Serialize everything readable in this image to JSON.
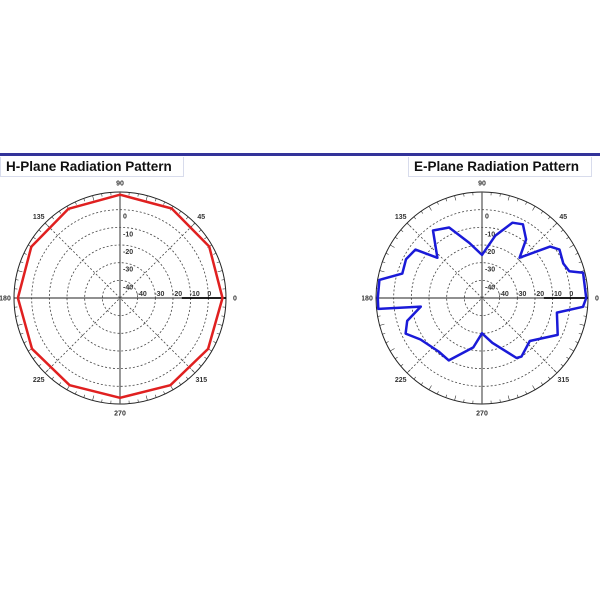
{
  "chart_data": [
    {
      "type": "polar-line",
      "title": "H-Plane Radiation Pattern",
      "angle_ticks": [
        "0",
        "45",
        "90",
        "135",
        "180",
        "225",
        "270",
        "315"
      ],
      "radial_ticks": [
        "0",
        "-10",
        "-20",
        "-30",
        "-40"
      ],
      "rlim": [
        -50,
        10
      ],
      "grid": true,
      "color": "#e02020",
      "theta": [
        0,
        30,
        60,
        90,
        120,
        150,
        180,
        210,
        240,
        270,
        300,
        330,
        360
      ],
      "r": [
        8,
        8.3,
        8.5,
        8.5,
        8.3,
        8,
        7.8,
        7.5,
        7,
        6.5,
        7,
        7.6,
        8
      ]
    },
    {
      "type": "polar-line",
      "title": "E-Plane Radiation Pattern",
      "angle_ticks": [
        "0",
        "45",
        "90",
        "135",
        "180",
        "225",
        "270",
        "315"
      ],
      "radial_ticks": [
        "0",
        "-10",
        "-20",
        "-30",
        "-40"
      ],
      "rlim": [
        -50,
        10
      ],
      "grid": true,
      "color": "#1a1ad8",
      "theta": [
        0,
        14,
        17,
        23,
        32,
        37,
        47,
        53,
        61,
        68,
        78,
        90,
        103,
        115,
        126,
        138,
        144,
        153,
        163,
        170,
        180,
        186,
        188,
        197,
        205,
        214,
        231,
        242,
        260,
        270,
        283,
        300,
        304,
        318,
        334,
        349,
        355,
        360
      ],
      "r": [
        9,
        9,
        1.7,
        0,
        1.7,
        -1.7,
        -18.8,
        -8.5,
        -2.3,
        -4,
        -14,
        -25.6,
        -18,
        -6,
        -2.8,
        -16,
        -3.4,
        -1.7,
        -2.8,
        9,
        9,
        9,
        -15,
        -5.7,
        -2.3,
        -8,
        -11,
        -10,
        -21.6,
        -30,
        -24,
        -10.8,
        -10,
        -13.6,
        -2.3,
        -6.8,
        7.4,
        9
      ]
    }
  ]
}
